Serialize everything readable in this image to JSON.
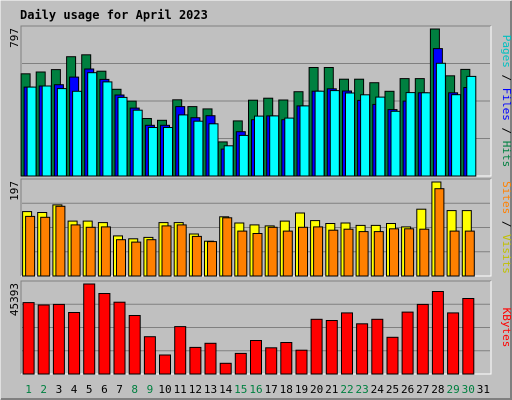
{
  "chart_data": {
    "type": "bar",
    "title": "Daily usage for April 2023",
    "days": [
      "1",
      "2",
      "3",
      "4",
      "5",
      "6",
      "7",
      "8",
      "9",
      "10",
      "11",
      "12",
      "13",
      "14",
      "15",
      "16",
      "17",
      "18",
      "19",
      "20",
      "21",
      "22",
      "23",
      "24",
      "25",
      "26",
      "27",
      "28",
      "29",
      "30",
      "31"
    ],
    "weekend_days": [
      1,
      2,
      8,
      9,
      15,
      16,
      22,
      23,
      29,
      30
    ],
    "colors": {
      "hits": "#008040",
      "files": "#0000ff",
      "pages": "#00ffff",
      "visits": "#ffff00",
      "sites": "#ff8000",
      "kbytes": "#ff0000",
      "title": "#0000ff",
      "weekday_label": "#000000",
      "weekend_label": "#008040",
      "panel_bg": "#c0c0c0"
    },
    "panels": [
      {
        "name": "hits-files-pages",
        "y_max_label": "797",
        "y_max": 797,
        "side_label": [
          {
            "text": "Pages",
            "color": "#00c0c0"
          },
          {
            "text": " / ",
            "color": "#000000"
          },
          {
            "text": "Files",
            "color": "#0000ff"
          },
          {
            "text": " / ",
            "color": "#000000"
          },
          {
            "text": "Hits",
            "color": "#008040"
          }
        ],
        "series": [
          {
            "name": "Hits",
            "values": [
              554,
              564,
              577,
              647,
              657,
              568,
              470,
              406,
              312,
              302,
              413,
              376,
              364,
              185,
              299,
              411,
              422,
              412,
              457,
              588,
              588,
              525,
              525,
              506,
              459,
              528,
              528,
              797,
              543,
              578,
              0
            ]
          },
          {
            "name": "Files",
            "values": [
              482,
              488,
              495,
              536,
              580,
              524,
              439,
              368,
              275,
              275,
              376,
              316,
              327,
              146,
              240,
              305,
              326,
              305,
              380,
              460,
              473,
              461,
              410,
              388,
              360,
              406,
              451,
              691,
              451,
              480,
              0
            ]
          },
          {
            "name": "Pages",
            "values": [
              482,
              488,
              474,
              459,
              560,
              510,
              426,
              357,
              263,
              263,
              331,
              297,
              283,
              164,
              220,
              325,
              326,
              314,
              380,
              460,
              463,
              450,
              440,
              428,
              351,
              452,
              451,
              611,
              441,
              540,
              0
            ]
          }
        ]
      },
      {
        "name": "visits-sites",
        "y_max_label": "197",
        "y_max": 197,
        "side_label": [
          {
            "text": "Sites",
            "color": "#ff8000"
          },
          {
            "text": " / ",
            "color": "#000000"
          },
          {
            "text": "Visits",
            "color": "#c0c000"
          }
        ],
        "series": [
          {
            "name": "Visits",
            "values": [
              135,
              133,
              149,
              115,
              115,
              112,
              84,
              78,
              81,
              112,
              112,
              88,
              73,
              124,
              111,
              107,
              105,
              115,
              132,
              116,
              110,
              111,
              106,
              106,
              110,
              103,
              140,
              197,
              137,
              137,
              0
            ]
          },
          {
            "name": "Sites",
            "values": [
              125,
              123,
              146,
              107,
              102,
              103,
              76,
              71,
              76,
              105,
              107,
              83,
              72,
              122,
              94,
              89,
              102,
              94,
              102,
              103,
              96,
              98,
              93,
              93,
              99,
              99,
              98,
              183,
              94,
              94,
              0
            ]
          }
        ]
      },
      {
        "name": "kbytes",
        "y_max_label": "45393",
        "y_max": 45393,
        "side_label": [
          {
            "text": "KBytes",
            "color": "#ff0000"
          }
        ],
        "series": [
          {
            "name": "KBytes",
            "values": [
              36000,
              34800,
              35100,
              31000,
              45393,
              40600,
              36200,
              29500,
              18800,
              9600,
              23900,
              13400,
              15500,
              5400,
              10400,
              16900,
              13200,
              15900,
              12000,
              27600,
              27000,
              30800,
              25300,
              27600,
              18500,
              31200,
              35100,
              41600,
              30800,
              38100,
              0
            ]
          }
        ]
      }
    ]
  }
}
